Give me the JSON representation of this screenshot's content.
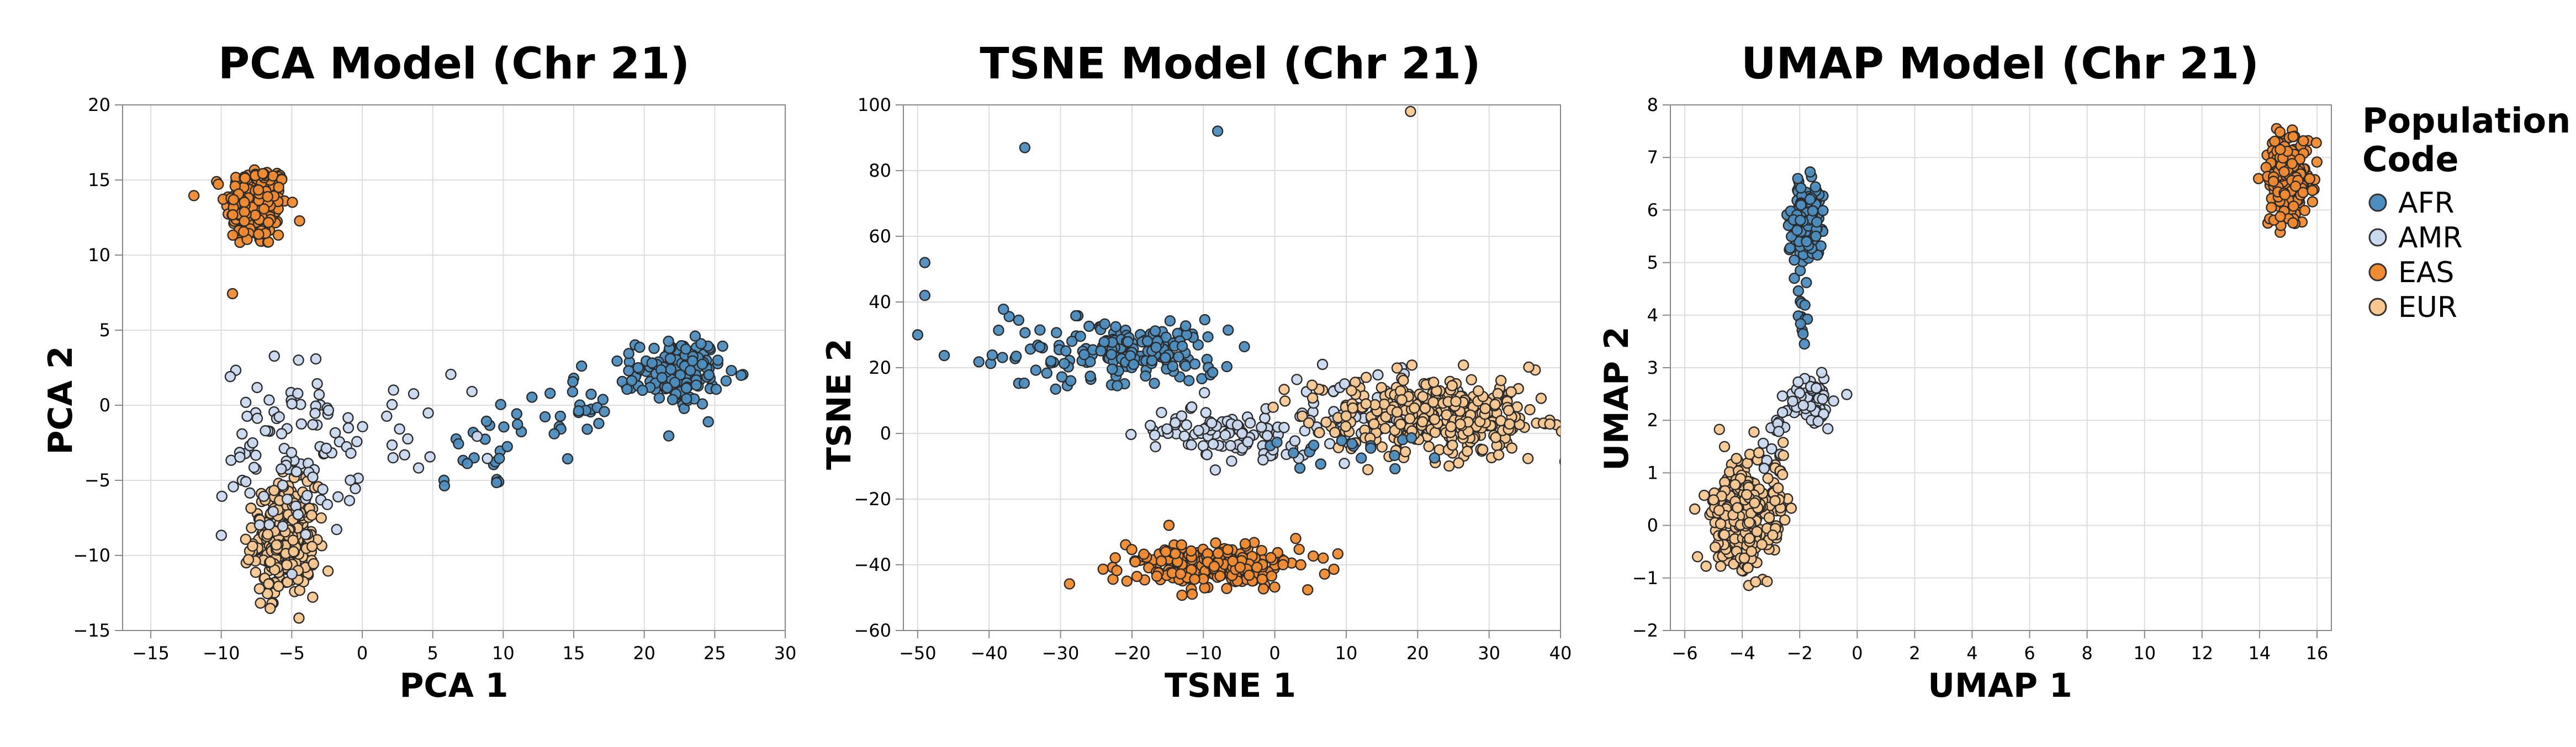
{
  "colors": {
    "AFR": "#4c8ebf",
    "AMR": "#c9d9ee",
    "EAS": "#f28b30",
    "EUR": "#f8c891",
    "grid": "#dddddd",
    "axis": "#888888"
  },
  "legend": {
    "title_line1": "Population",
    "title_line2": "Code",
    "items": [
      {
        "code": "AFR",
        "label": "AFR"
      },
      {
        "code": "AMR",
        "label": "AMR"
      },
      {
        "code": "EAS",
        "label": "EAS"
      },
      {
        "code": "EUR",
        "label": "EUR"
      }
    ]
  },
  "chart_data": [
    {
      "type": "scatter",
      "title": "PCA Model (Chr 21)",
      "xlabel": "PCA 1",
      "ylabel": "PCA 2",
      "xlim": [
        -17,
        30
      ],
      "ylim": [
        -15,
        20
      ],
      "xticks": [
        -15,
        -10,
        -5,
        0,
        5,
        10,
        15,
        20,
        25,
        30
      ],
      "yticks": [
        -15,
        -10,
        -5,
        0,
        5,
        10,
        15,
        20
      ],
      "xtick_labels": [
        "−15",
        "−10",
        "−5",
        "0",
        "5",
        "10",
        "15",
        "20",
        "25",
        "30"
      ],
      "ytick_labels": [
        "−15",
        "−10",
        "−5",
        "0",
        "5",
        "10",
        "15",
        "20"
      ],
      "grid": true,
      "clusters": [
        {
          "group": "EAS",
          "cx": -7.5,
          "cy": 13.3,
          "sx": 1.1,
          "sy": 1.4,
          "n": 210
        },
        {
          "group": "EUR",
          "cx": -5.5,
          "cy": -9,
          "sx": 1.1,
          "sy": 1.8,
          "n": 280
        },
        {
          "group": "AMR",
          "cx": -5,
          "cy": -3,
          "sx": 2.4,
          "sy": 3.0,
          "n": 95
        },
        {
          "group": "AFR",
          "cx": 22.5,
          "cy": 2.2,
          "sx": 1.5,
          "sy": 1.1,
          "n": 150
        }
      ],
      "trails": [
        {
          "group": "AFR",
          "from": [
            6,
            -4
          ],
          "to": [
            20,
            1.5
          ],
          "n": 55,
          "spread": 1.2
        },
        {
          "group": "AMR",
          "from": [
            -3,
            -4
          ],
          "to": [
            8,
            -1
          ],
          "n": 22,
          "spread": 1.8
        }
      ]
    },
    {
      "type": "scatter",
      "title": "TSNE Model (Chr 21)",
      "xlabel": "TSNE 1",
      "ylabel": "TSNE 2",
      "xlim": [
        -52,
        40
      ],
      "ylim": [
        -60,
        100
      ],
      "xticks": [
        -50,
        -40,
        -30,
        -20,
        -10,
        0,
        10,
        20,
        30,
        40
      ],
      "yticks": [
        -60,
        -40,
        -20,
        0,
        20,
        40,
        60,
        80,
        100
      ],
      "xtick_labels": [
        "−50",
        "−40",
        "−30",
        "−20",
        "−10",
        "0",
        "10",
        "20",
        "30",
        "40"
      ],
      "ytick_labels": [
        "−60",
        "−40",
        "−20",
        "0",
        "20",
        "40",
        "60",
        "80",
        "100"
      ],
      "grid": true,
      "clusters": [
        {
          "group": "AFR",
          "cx": -19,
          "cy": 25,
          "sx": 6,
          "sy": 5,
          "n": 170
        },
        {
          "group": "AFR",
          "cx": -33,
          "cy": 25,
          "sx": 6,
          "sy": 8,
          "n": 25
        },
        {
          "group": "AMR",
          "cx": -6,
          "cy": 0,
          "sx": 6,
          "sy": 4,
          "n": 100
        },
        {
          "group": "AMR",
          "cx": 12,
          "cy": 6,
          "sx": 6,
          "sy": 7,
          "n": 60
        },
        {
          "group": "EUR",
          "cx": 22,
          "cy": 5,
          "sx": 8,
          "sy": 6,
          "n": 330
        },
        {
          "group": "AFR",
          "cx": 12,
          "cy": -6,
          "sx": 6,
          "sy": 3,
          "n": 18
        },
        {
          "group": "EAS",
          "cx": -9,
          "cy": -40,
          "sx": 6.5,
          "sy": 3.2,
          "n": 240
        }
      ],
      "outliers": [
        {
          "group": "AFR",
          "x": -49,
          "y": 52
        },
        {
          "group": "AFR",
          "x": -49,
          "y": 42
        },
        {
          "group": "AFR",
          "x": -50,
          "y": 30
        },
        {
          "group": "AFR",
          "x": -35,
          "y": 87
        },
        {
          "group": "AFR",
          "x": -8,
          "y": 92
        },
        {
          "group": "EUR",
          "x": 19,
          "y": 98
        }
      ]
    },
    {
      "type": "scatter",
      "title": "UMAP Model (Chr 21)",
      "xlabel": "UMAP 1",
      "ylabel": "UMAP 2",
      "xlim": [
        -6.5,
        16.5
      ],
      "ylim": [
        -2,
        8
      ],
      "xticks": [
        -6,
        -4,
        -2,
        0,
        2,
        4,
        6,
        8,
        10,
        12,
        14,
        16
      ],
      "yticks": [
        -2,
        -1,
        0,
        1,
        2,
        3,
        4,
        5,
        6,
        7,
        8
      ],
      "xtick_labels": [
        "−6",
        "−4",
        "−2",
        "0",
        "2",
        "4",
        "6",
        "8",
        "10",
        "12",
        "14",
        "16"
      ],
      "ytick_labels": [
        "−2",
        "−1",
        "0",
        "1",
        "2",
        "3",
        "4",
        "5",
        "6",
        "7",
        "8"
      ],
      "grid": true,
      "clusters": [
        {
          "group": "EAS",
          "cx": 15,
          "cy": 6.6,
          "sx": 0.35,
          "sy": 0.4,
          "n": 250
        },
        {
          "group": "AFR",
          "cx": -1.8,
          "cy": 5.8,
          "sx": 0.3,
          "sy": 0.35,
          "n": 170
        },
        {
          "group": "AMR",
          "cx": -1.5,
          "cy": 2.3,
          "sx": 0.35,
          "sy": 0.3,
          "n": 55
        },
        {
          "group": "EUR",
          "cx": -4,
          "cy": 0.2,
          "sx": 0.55,
          "sy": 0.5,
          "n": 320
        }
      ],
      "trails": [
        {
          "group": "AFR",
          "from": [
            -1.9,
            3.5
          ],
          "to": [
            -1.9,
            5.0
          ],
          "n": 14,
          "spread": 0.12
        },
        {
          "group": "AMR",
          "from": [
            -3.3,
            1.1
          ],
          "to": [
            -2,
            2.6
          ],
          "n": 28,
          "spread": 0.2
        },
        {
          "group": "EUR",
          "from": [
            -3,
            -0.5
          ],
          "to": [
            -2.6,
            1.4
          ],
          "n": 20,
          "spread": 0.18
        }
      ]
    }
  ]
}
